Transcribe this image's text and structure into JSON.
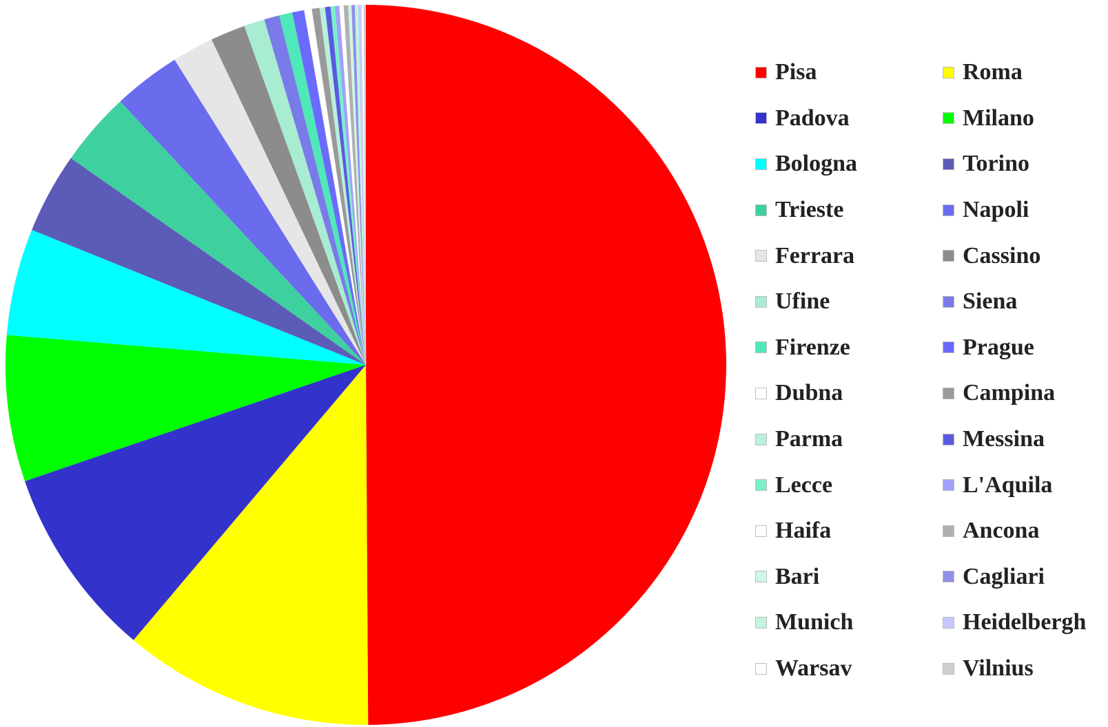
{
  "chart_data": {
    "type": "pie",
    "title": "",
    "start_angle_deg": 0,
    "direction": "clockwise",
    "legend_position": "right",
    "slices": [
      {
        "label": "Pisa",
        "value": 51.0,
        "color": "#ff0000"
      },
      {
        "label": "Roma",
        "value": 11.5,
        "color": "#ffff00"
      },
      {
        "label": "Padova",
        "value": 8.8,
        "color": "#3333cc"
      },
      {
        "label": "Milano",
        "value": 6.7,
        "color": "#00ff00"
      },
      {
        "label": "Bologna",
        "value": 4.9,
        "color": "#00ffff"
      },
      {
        "label": "Torino",
        "value": 3.7,
        "color": "#5c5cb8"
      },
      {
        "label": "Trieste",
        "value": 3.4,
        "color": "#3fd0a0"
      },
      {
        "label": "Napoli",
        "value": 3.1,
        "color": "#6b6bee"
      },
      {
        "label": "Ferrara",
        "value": 1.9,
        "color": "#e6e6e6"
      },
      {
        "label": "Cassino",
        "value": 1.6,
        "color": "#8c8c8c"
      },
      {
        "label": "Ufine",
        "value": 0.95,
        "color": "#a8ecd2"
      },
      {
        "label": "Siena",
        "value": 0.7,
        "color": "#7a7ae8"
      },
      {
        "label": "Firenze",
        "value": 0.6,
        "color": "#4fe8b8"
      },
      {
        "label": "Prague",
        "value": 0.55,
        "color": "#6a6aff"
      },
      {
        "label": "Dubna",
        "value": 0.35,
        "color": "#ffffff"
      },
      {
        "label": "Campina",
        "value": 0.35,
        "color": "#9a9a9a"
      },
      {
        "label": "Parma",
        "value": 0.25,
        "color": "#b8f0dc"
      },
      {
        "label": "Messina",
        "value": 0.25,
        "color": "#5a5ae0"
      },
      {
        "label": "Lecce",
        "value": 0.2,
        "color": "#7af0c8"
      },
      {
        "label": "L'Aquila",
        "value": 0.2,
        "color": "#a0a0ff"
      },
      {
        "label": "Haifa",
        "value": 0.2,
        "color": "#ffffff"
      },
      {
        "label": "Ancona",
        "value": 0.2,
        "color": "#b0b0b0"
      },
      {
        "label": "Bari",
        "value": 0.15,
        "color": "#d0f6e6"
      },
      {
        "label": "Cagliari",
        "value": 0.15,
        "color": "#9090e8"
      },
      {
        "label": "Munich",
        "value": 0.15,
        "color": "#c4f4de"
      },
      {
        "label": "Heidelbergh",
        "value": 0.15,
        "color": "#c8c8ff"
      },
      {
        "label": "Warsav",
        "value": 0.1,
        "color": "#ffffff"
      },
      {
        "label": "Vilnius",
        "value": 0.1,
        "color": "#cfcfcf"
      }
    ]
  }
}
